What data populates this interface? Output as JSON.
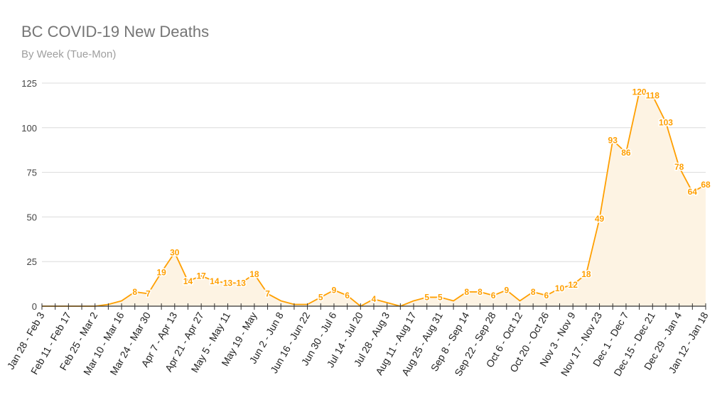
{
  "chart_data": {
    "type": "area",
    "title": "BC COVID-19 New Deaths",
    "subtitle": "By Week (Tue-Mon)",
    "xlabel": "",
    "ylabel": "",
    "ylim": [
      0,
      125
    ],
    "yticks": [
      0,
      25,
      50,
      75,
      100,
      125
    ],
    "grid": true,
    "legend": "none",
    "tick_labels": [
      "Jan 28 - Feb 3",
      "Feb 11 - Feb 17",
      "Feb 25 - Mar 2",
      "Mar 10 - Mar 16",
      "Mar 24 - Mar 30",
      "Apr 7 - Apr 13",
      "Apr 21 - Apr 27",
      "May 5 - May 11",
      "May 19 - May",
      "Jun 2 - Jun 8",
      "Jun 16 - Jun 22",
      "Jun 30 - Jul 6",
      "Jul 14 - Jul 20",
      "Jul 28 - Aug 3",
      "Aug 11 - Aug 17",
      "Aug 25 - Aug 31",
      "Sep 8 - Sep 14",
      "Sep 22 - Sep 28",
      "Oct 6 - Oct 12",
      "Oct 20 - Oct 26",
      "Nov 3 - Nov 9",
      "Nov 17 - Nov 23",
      "Dec 1 - Dec 7",
      "Dec 15 - Dec 21",
      "Dec 29 - Jan 4",
      "Jan 12 - Jan 18"
    ],
    "series": [
      {
        "name": "New Deaths",
        "color": "#ff9f00",
        "fill": "#fdf3e3",
        "values": [
          0,
          0,
          0,
          0,
          0,
          1,
          3,
          8,
          7,
          19,
          30,
          14,
          17,
          14,
          13,
          13,
          18,
          7,
          3,
          1,
          1,
          5,
          9,
          6,
          0,
          4,
          2,
          0,
          3,
          5,
          5,
          3,
          8,
          8,
          6,
          9,
          3,
          8,
          6,
          10,
          12,
          18,
          49,
          93,
          86,
          120,
          118,
          103,
          78,
          64,
          68
        ]
      }
    ]
  }
}
